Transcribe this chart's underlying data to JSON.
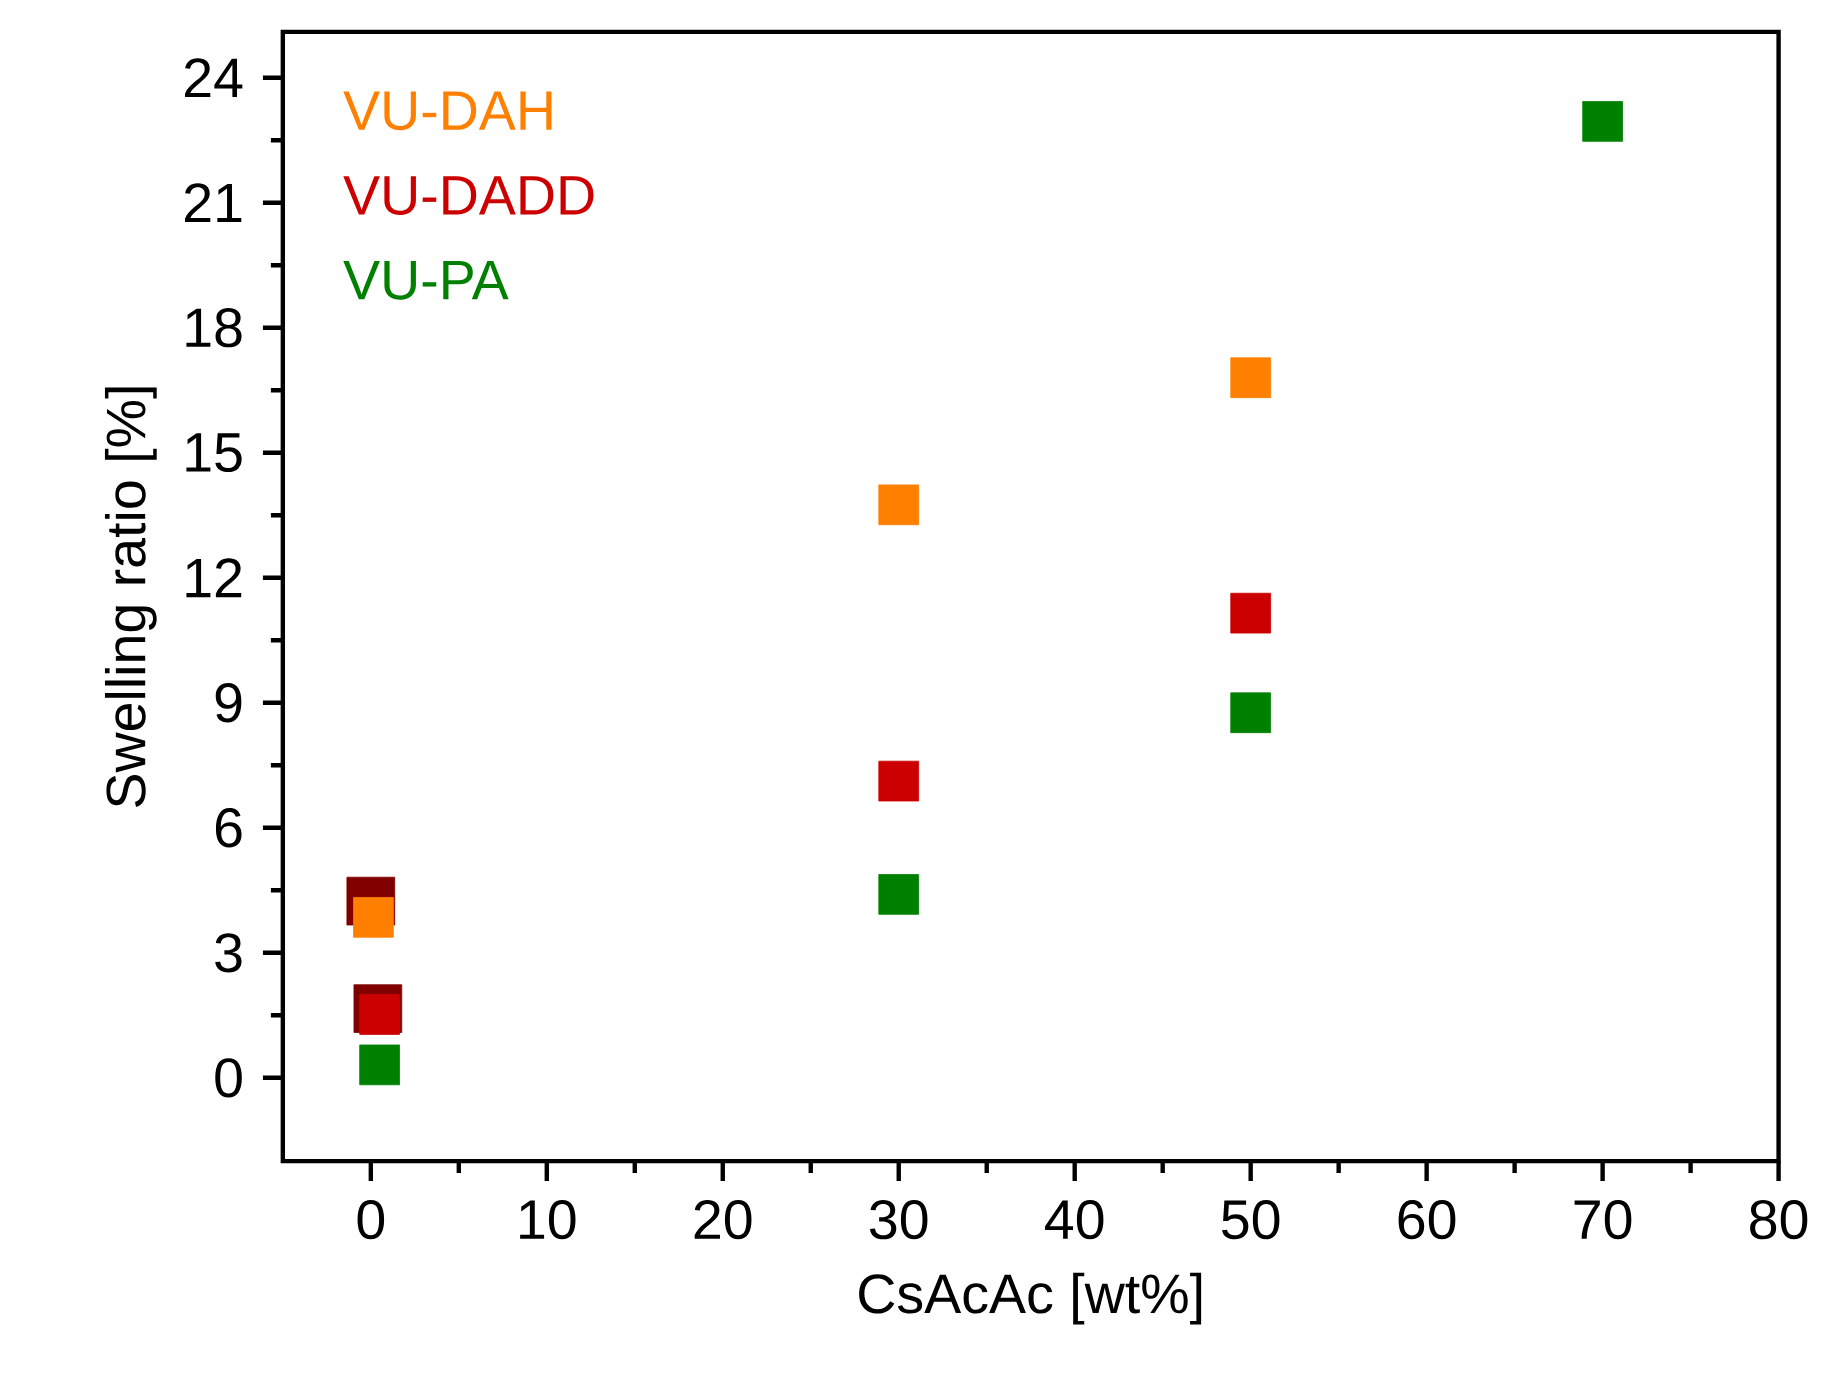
{
  "chart_data": {
    "type": "scatter",
    "xlabel": "CsAcAc [wt%]",
    "ylabel": "Swelling ratio [%]",
    "xlim": [
      -5,
      80
    ],
    "ylim": [
      -2,
      25.1
    ],
    "xticks": [
      0,
      10,
      20,
      30,
      40,
      50,
      60,
      70,
      80
    ],
    "yticks": [
      0,
      3,
      6,
      9,
      12,
      15,
      18,
      21,
      24
    ],
    "marker": "square",
    "legend": "top left",
    "grid": false,
    "series": [
      {
        "color": "#800000",
        "x": [
          0,
          0.4
        ],
        "values": [
          4.24,
          1.66
        ]
      },
      {
        "name": "VU-DAH",
        "color": "#ff8000",
        "x": [
          0.15,
          30,
          50
        ],
        "values": [
          3.85,
          13.75,
          16.8
        ]
      },
      {
        "name": "VU-DADD",
        "color": "#cc0000",
        "x": [
          0.5,
          30,
          50
        ],
        "values": [
          1.52,
          7.12,
          11.15
        ]
      },
      {
        "name": "VU-PA",
        "color": "#008000",
        "x": [
          0.5,
          30,
          50,
          70
        ],
        "values": [
          0.31,
          4.4,
          8.76,
          22.95
        ]
      }
    ]
  }
}
